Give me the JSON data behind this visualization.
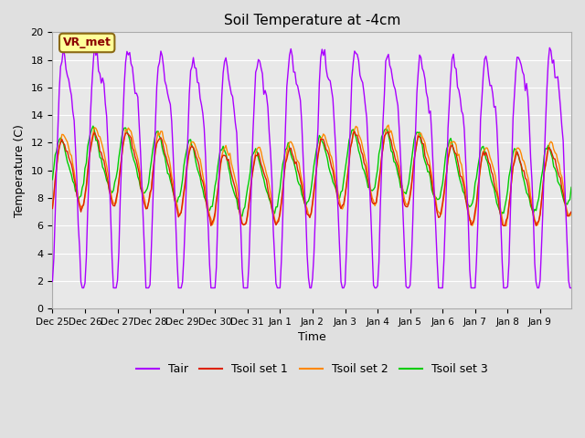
{
  "title": "Soil Temperature at -4cm",
  "xlabel": "Time",
  "ylabel": "Temperature (C)",
  "ylim": [
    0,
    20
  ],
  "yticks": [
    0,
    2,
    4,
    6,
    8,
    10,
    12,
    14,
    16,
    18,
    20
  ],
  "bg_color": "#e0e0e0",
  "plot_bg": "#e8e8e8",
  "grid_color": "#ffffff",
  "annotation_text": "VR_met",
  "annotation_color": "#8b0000",
  "annotation_bg": "#ffff99",
  "annotation_edge": "#8b6914",
  "line_colors": {
    "Tair": "#aa00ff",
    "Tsoil set 1": "#dd2200",
    "Tsoil set 2": "#ff8800",
    "Tsoil set 3": "#00cc00"
  },
  "legend_labels": [
    "Tair",
    "Tsoil set 1",
    "Tsoil set 2",
    "Tsoil set 3"
  ],
  "figsize": [
    6.4,
    4.8
  ],
  "dpi": 100
}
